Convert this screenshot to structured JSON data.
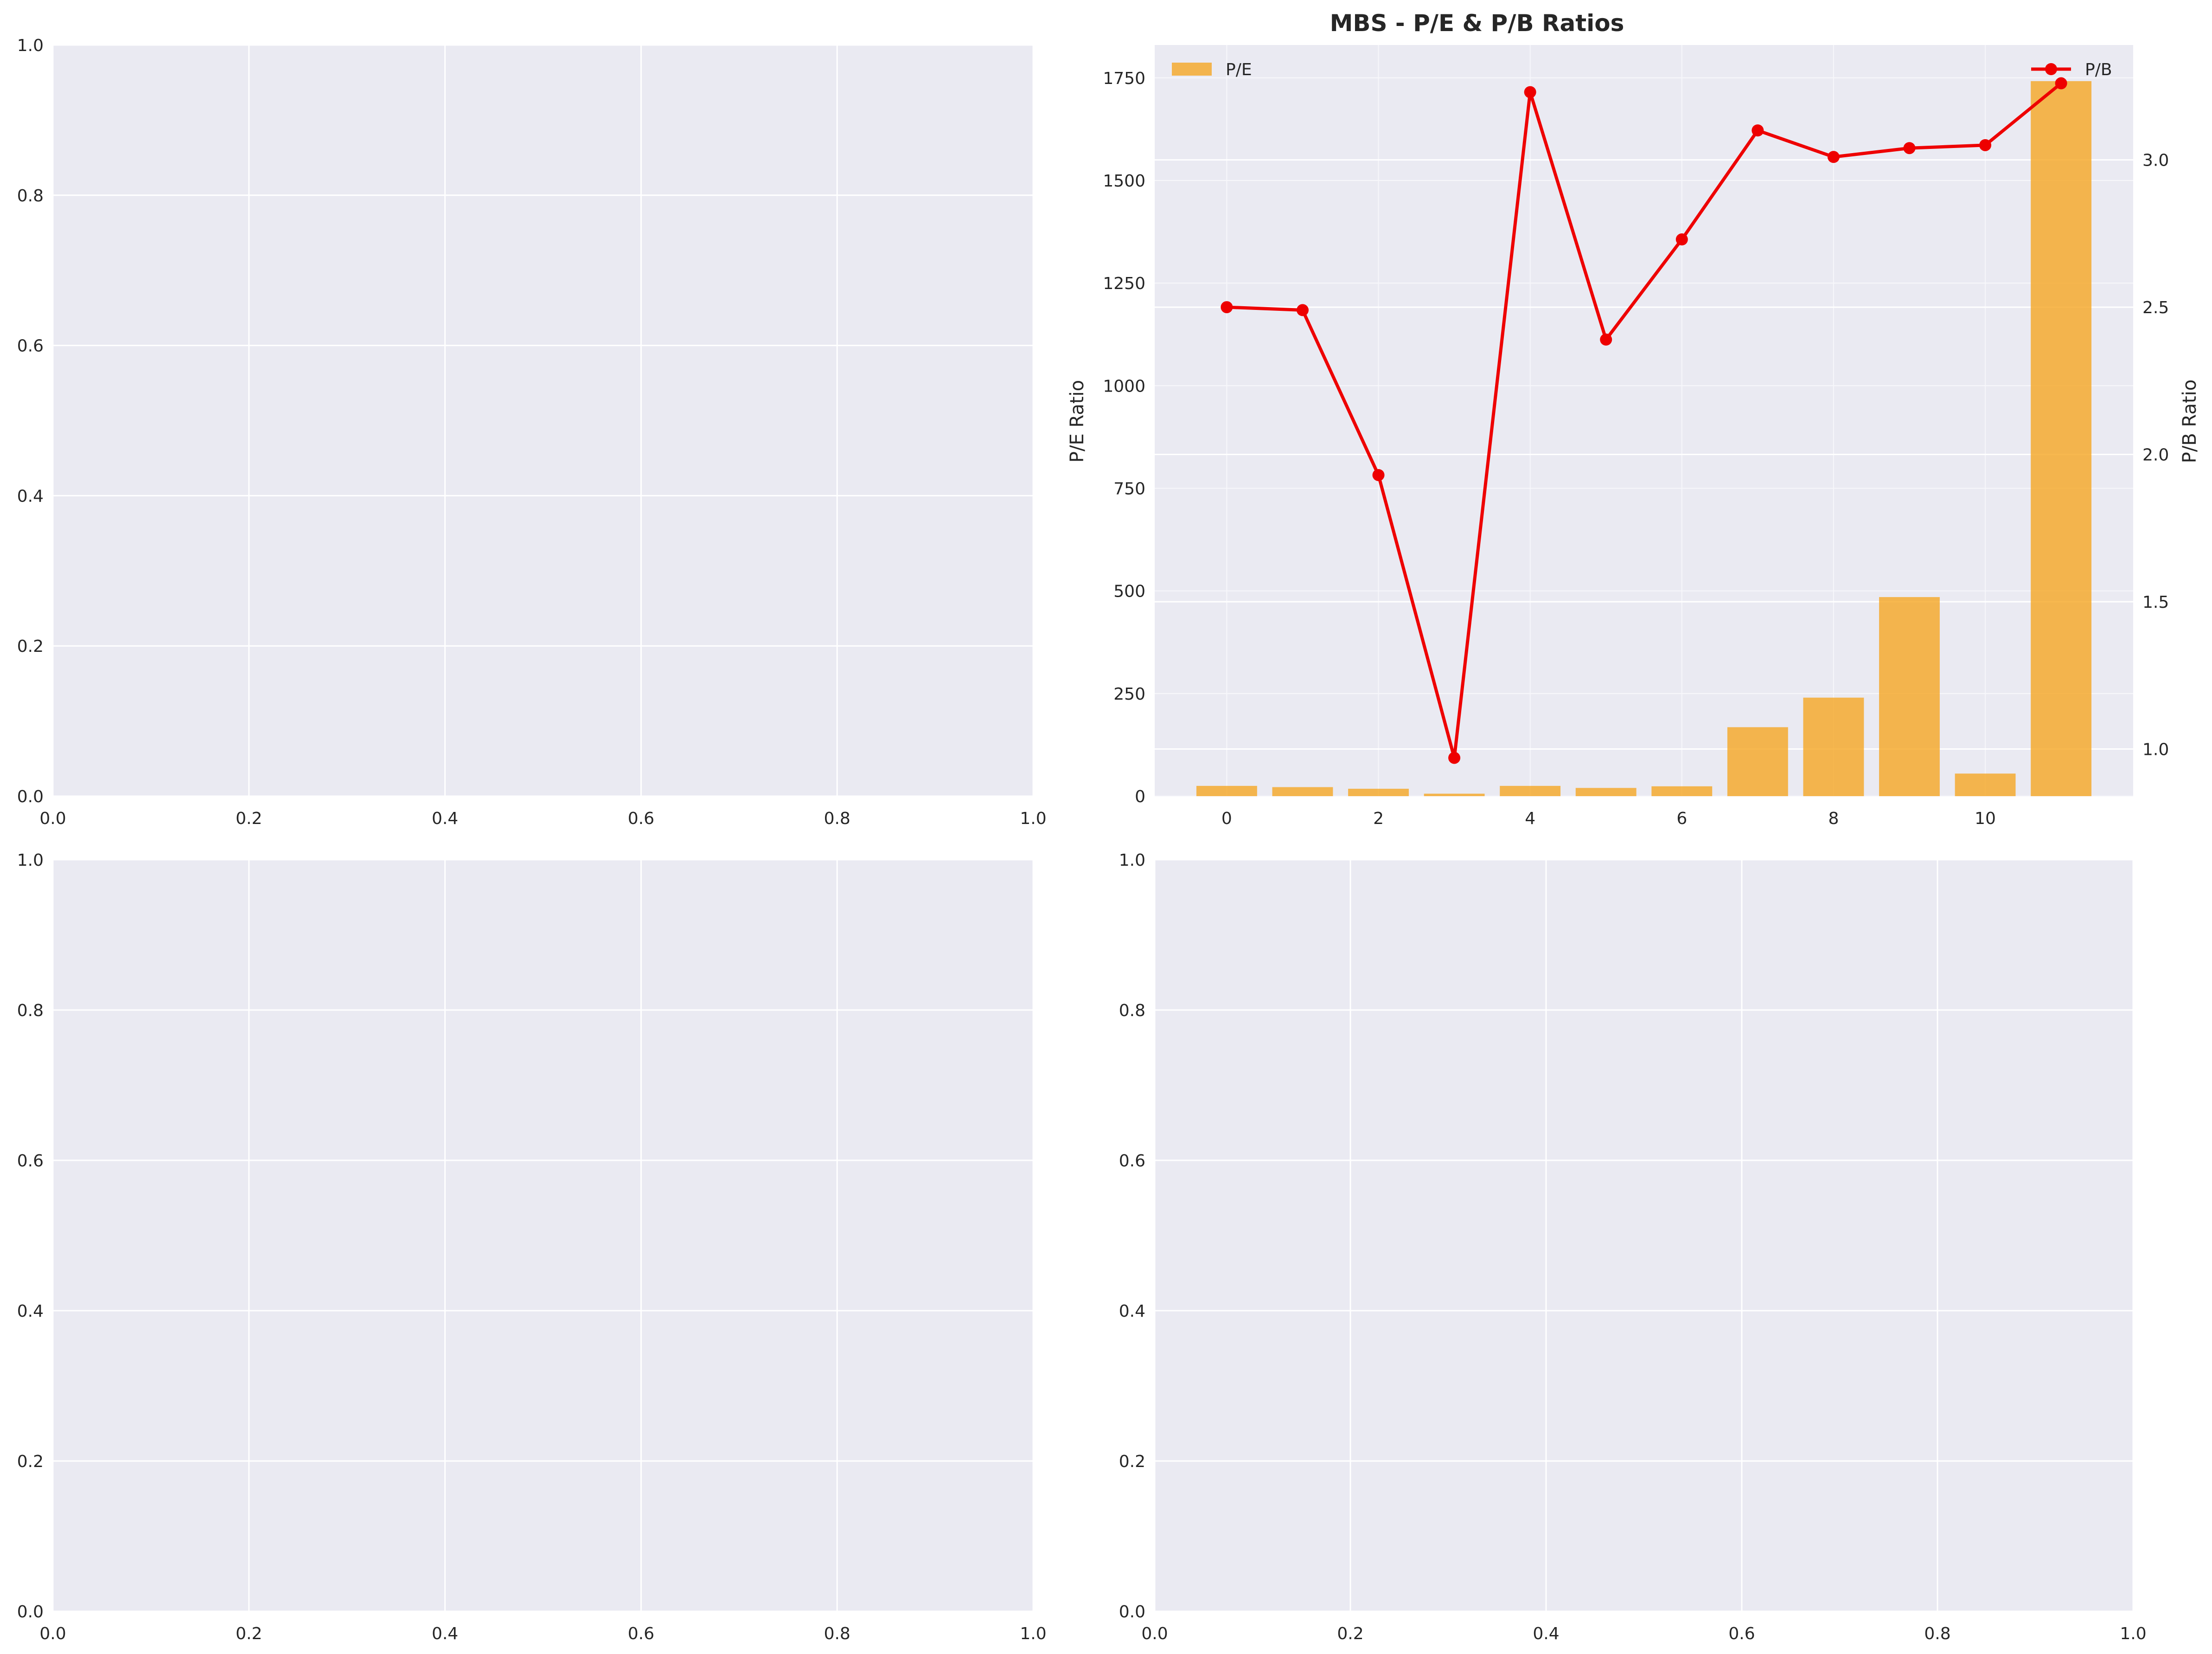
{
  "colors": {
    "panel_bg": "#eaeaf2",
    "grid": "#ffffff",
    "bar": "#f5a623",
    "line": "#ee0000"
  },
  "chart_data": [
    {
      "panel": "top-left",
      "type": "empty",
      "xlim": [
        0,
        1
      ],
      "ylim": [
        0,
        1
      ],
      "xticks": [
        "0.0",
        "0.2",
        "0.4",
        "0.6",
        "0.8",
        "1.0"
      ],
      "yticks": [
        "0.0",
        "0.2",
        "0.4",
        "0.6",
        "0.8",
        "1.0"
      ],
      "grid": true
    },
    {
      "panel": "top-right",
      "type": "bar+line",
      "title": "MBS - P/E & P/B Ratios",
      "x": [
        0,
        1,
        2,
        3,
        4,
        5,
        6,
        7,
        8,
        9,
        10,
        11
      ],
      "xticks": [
        "0",
        "2",
        "4",
        "6",
        "8",
        "10"
      ],
      "xlim": [
        -0.95,
        11.95
      ],
      "left_axis": {
        "label": "P/E Ratio",
        "ylim": [
          0,
          1830
        ],
        "yticks": [
          "0",
          "250",
          "500",
          "750",
          "1000",
          "1250",
          "1500",
          "1750"
        ]
      },
      "right_axis": {
        "label": "P/B Ratio",
        "ylim": [
          0.84,
          3.39
        ],
        "yticks": [
          "1.0",
          "1.5",
          "2.0",
          "2.5",
          "3.0"
        ]
      },
      "series": [
        {
          "name": "P/E",
          "type": "bar",
          "axis": "left",
          "values": [
            25,
            22,
            18,
            6,
            25,
            20,
            24,
            168,
            240,
            485,
            55,
            1742
          ]
        },
        {
          "name": "P/B",
          "type": "line",
          "axis": "right",
          "values": [
            2.5,
            2.49,
            1.93,
            0.97,
            3.23,
            2.39,
            2.73,
            3.1,
            3.01,
            3.04,
            3.05,
            3.26
          ]
        }
      ],
      "legend": [
        {
          "label": "P/E",
          "placement": "upper-left"
        },
        {
          "label": "P/B",
          "placement": "upper-right"
        }
      ],
      "grid": true
    },
    {
      "panel": "bottom-left",
      "type": "empty",
      "xlim": [
        0,
        1
      ],
      "ylim": [
        0,
        1
      ],
      "xticks": [
        "0.0",
        "0.2",
        "0.4",
        "0.6",
        "0.8",
        "1.0"
      ],
      "yticks": [
        "0.0",
        "0.2",
        "0.4",
        "0.6",
        "0.8",
        "1.0"
      ],
      "grid": true
    },
    {
      "panel": "bottom-right",
      "type": "empty",
      "xlim": [
        0,
        1
      ],
      "ylim": [
        0,
        1
      ],
      "xticks": [
        "0.0",
        "0.2",
        "0.4",
        "0.6",
        "0.8",
        "1.0"
      ],
      "yticks": [
        "0.0",
        "0.2",
        "0.4",
        "0.6",
        "0.8",
        "1.0"
      ],
      "grid": true
    }
  ]
}
